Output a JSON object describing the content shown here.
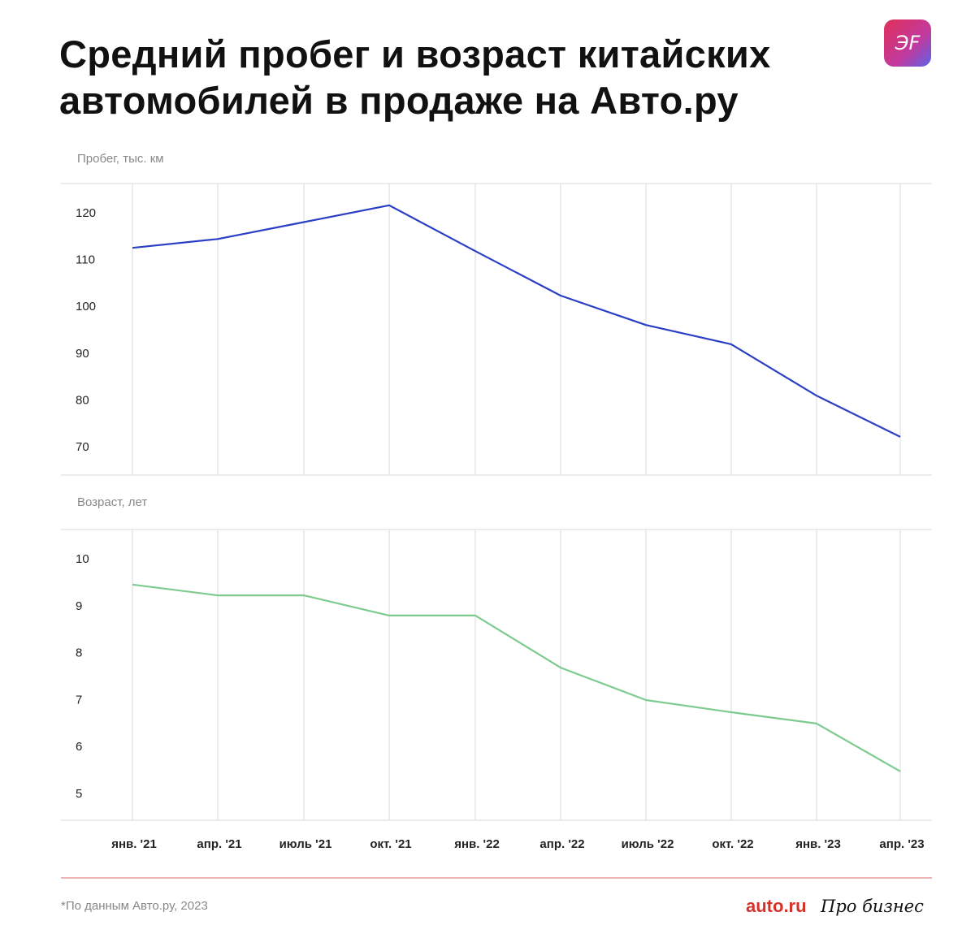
{
  "title_line1": "Средний пробег и возраст китайских",
  "title_line2": "автомобилей в продаже на Авто.ру",
  "logo_text": "ЭF",
  "footnote": "*По данным Авто.ру, 2023",
  "brand_autoru": "auto.ru",
  "brand_probiznes": "Про бизнес",
  "chart_data": [
    {
      "type": "line",
      "ylabel": "Пробег, тыс. км",
      "categories": [
        "янв. '21",
        "апр. '21",
        "июль '21",
        "окт. '21",
        "янв. '22",
        "апр. '22",
        "июль '22",
        "окт. '22",
        "янв. '23",
        "апр. '23"
      ],
      "values": [
        112.5,
        114.4,
        118,
        121.6,
        111.8,
        102.3,
        96,
        91.9,
        80.9,
        72.1
      ],
      "yticks": [
        70,
        80,
        90,
        100,
        110,
        120
      ],
      "color": "#2b3fc4",
      "grid": "vertical"
    },
    {
      "type": "line",
      "ylabel": "Возраст, лет",
      "categories": [
        "янв. '21",
        "апр. '21",
        "июль '21",
        "окт. '21",
        "янв. '22",
        "апр. '22",
        "июль '22",
        "окт. '22",
        "янв. '23",
        "апр. '23"
      ],
      "values": [
        9.45,
        9.22,
        9.22,
        8.79,
        8.79,
        7.68,
        6.99,
        6.73,
        6.49,
        5.47
      ],
      "yticks": [
        5,
        6,
        7,
        8,
        9,
        10
      ],
      "color": "#7dcb8e",
      "grid": "vertical"
    }
  ]
}
